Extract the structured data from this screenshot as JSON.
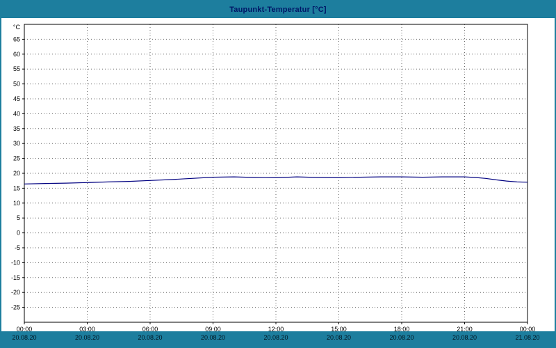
{
  "window": {
    "title": "Taupunkt-Temperatur [°C]"
  },
  "colors": {
    "header_bar": "#1d7e9e",
    "footer_bar": "#1d7e9e",
    "title_text": "#001566",
    "plot_background": "#ffffff",
    "gridline": "#666666",
    "axis": "#000000",
    "series_line": "#000080"
  },
  "chart_data": {
    "type": "line",
    "title": "Taupunkt-Temperatur [°C]",
    "y_unit": "°C",
    "ylabel": "",
    "xlabel": "",
    "ylim": [
      -30,
      70
    ],
    "yticks": [
      -25,
      -20,
      -15,
      -10,
      -5,
      0,
      5,
      10,
      15,
      20,
      25,
      30,
      35,
      40,
      45,
      50,
      55,
      60,
      65
    ],
    "grid": "dotted",
    "legend_position": "none",
    "x_hours_range": [
      0,
      24
    ],
    "xticks": [
      {
        "hour": 0,
        "time": "00:00",
        "date": "20.08.20"
      },
      {
        "hour": 3,
        "time": "03:00",
        "date": "20.08.20"
      },
      {
        "hour": 6,
        "time": "06:00",
        "date": "20.08.20"
      },
      {
        "hour": 9,
        "time": "09:00",
        "date": "20.08.20"
      },
      {
        "hour": 12,
        "time": "12:00",
        "date": "20.08.20"
      },
      {
        "hour": 15,
        "time": "15:00",
        "date": "20.08.20"
      },
      {
        "hour": 18,
        "time": "18:00",
        "date": "20.08.20"
      },
      {
        "hour": 21,
        "time": "21:00",
        "date": "20.08.20"
      },
      {
        "hour": 24,
        "time": "00:00",
        "date": "21.08.20"
      }
    ],
    "series": [
      {
        "name": "Taupunkt-Temperatur",
        "color": "#000080",
        "x_hours": [
          0,
          1,
          2,
          3,
          4,
          5,
          6,
          7,
          8,
          9,
          10,
          11,
          12,
          13,
          14,
          15,
          16,
          17,
          18,
          19,
          20,
          21,
          21.5,
          22,
          22.5,
          23,
          23.5,
          24
        ],
        "values": [
          16.4,
          16.6,
          16.7,
          16.9,
          17.1,
          17.3,
          17.6,
          17.9,
          18.3,
          18.7,
          18.8,
          18.6,
          18.5,
          18.8,
          18.6,
          18.5,
          18.7,
          18.8,
          18.8,
          18.7,
          18.8,
          18.8,
          18.6,
          18.3,
          17.8,
          17.4,
          17.1,
          17.0
        ]
      }
    ]
  }
}
